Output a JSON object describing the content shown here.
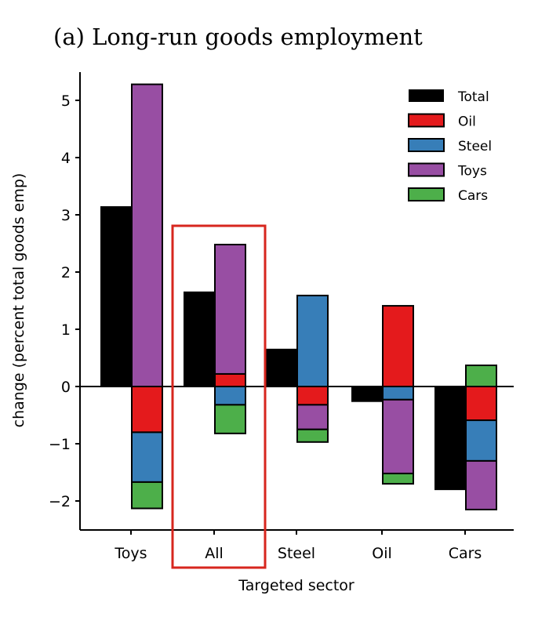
{
  "chart_data": {
    "type": "bar",
    "title": "(a) Long-run goods employment",
    "xlabel": "Targeted sector",
    "ylabel": "change (percent total goods emp)",
    "ylim": [
      -2.5,
      5.5
    ],
    "yticks": [
      "5",
      "4",
      "3",
      "2",
      "1",
      "0",
      "−1",
      "−2"
    ],
    "ytick_values": [
      5,
      4,
      3,
      2,
      1,
      0,
      -1,
      -2
    ],
    "categories": [
      "Toys",
      "All",
      "Steel",
      "Oil",
      "Cars"
    ],
    "highlighted_category": "All",
    "legend": [
      "Total",
      "Oil",
      "Steel",
      "Toys",
      "Cars"
    ],
    "legend_position": "top-right",
    "colors": {
      "Total": "#000000",
      "Oil": "#e41a1c",
      "Steel": "#377eb8",
      "Toys": "#984ea3",
      "Cars": "#4daf4a",
      "highlight": "#d7261e"
    },
    "total": [
      3.15,
      1.66,
      0.66,
      -0.27,
      -1.81
    ],
    "components": [
      {
        "name": "Oil",
        "values": [
          -0.8,
          0.22,
          -0.32,
          1.41,
          -0.59
        ]
      },
      {
        "name": "Steel",
        "values": [
          -0.87,
          -0.32,
          1.59,
          -0.23,
          -0.71
        ]
      },
      {
        "name": "Toys",
        "values": [
          5.28,
          2.26,
          -0.43,
          -1.29,
          -0.85
        ]
      },
      {
        "name": "Cars",
        "values": [
          -0.46,
          -0.5,
          -0.22,
          -0.18,
          0.37
        ]
      }
    ]
  }
}
